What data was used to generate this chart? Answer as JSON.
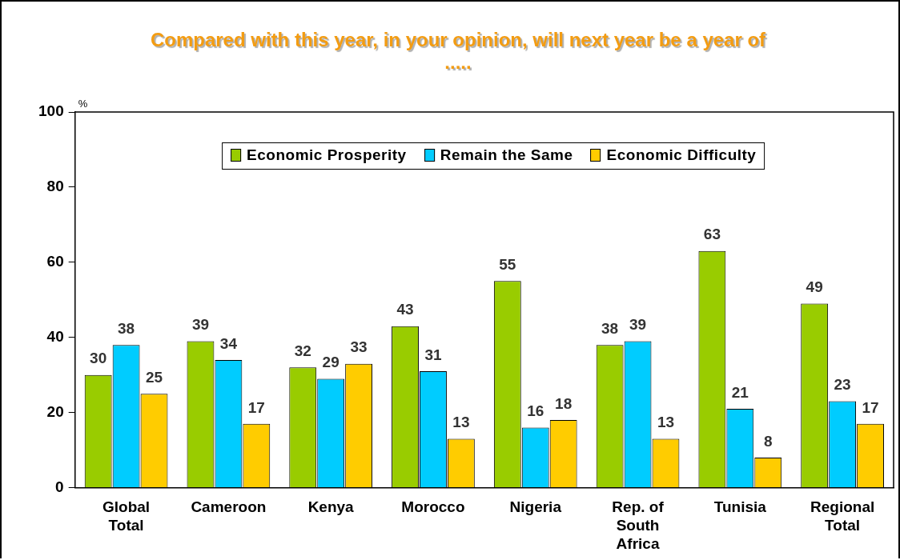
{
  "chart_data": {
    "type": "bar",
    "title": "Compared with this year, in your opinion, will next year be a year of .....",
    "ylabel": "%",
    "categories": [
      "Global Total",
      "Cameroon",
      "Kenya",
      "Morocco",
      "Nigeria",
      "Rep. of South Africa",
      "Tunisia",
      "Regional Total"
    ],
    "series": [
      {
        "name": "Economic Prosperity",
        "color": "#99cc00",
        "values": [
          30,
          39,
          32,
          43,
          55,
          38,
          63,
          49
        ]
      },
      {
        "name": "Remain the Same",
        "color": "#00ccff",
        "values": [
          38,
          34,
          29,
          31,
          16,
          39,
          21,
          23
        ]
      },
      {
        "name": "Economic Difficulty",
        "color": "#ffcc00",
        "values": [
          25,
          17,
          33,
          13,
          18,
          13,
          8,
          17
        ]
      }
    ],
    "ylim": [
      0,
      100
    ],
    "yticks": [
      0,
      20,
      40,
      60,
      80,
      100
    ],
    "grid": false,
    "legend": "top",
    "data_labels": true
  }
}
